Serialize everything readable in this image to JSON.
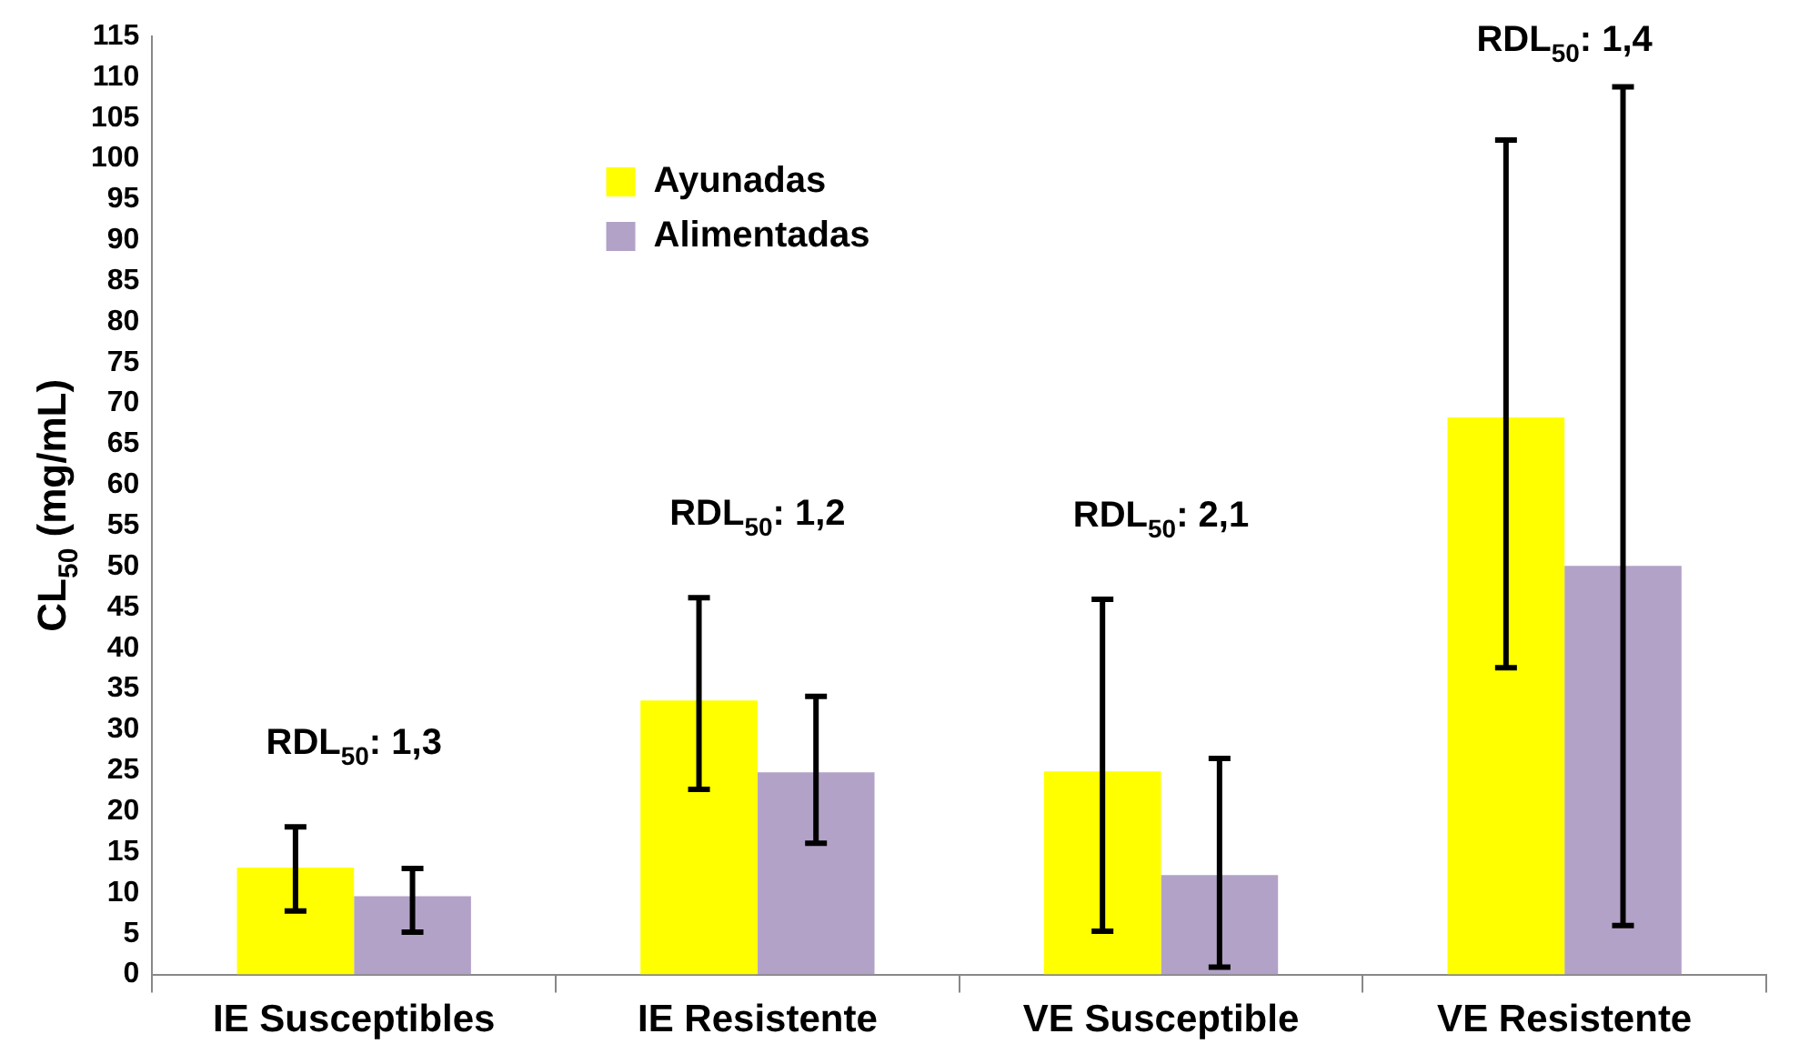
{
  "chart_data": {
    "type": "bar",
    "ylabel": "CL$_{50}$ (mg/mL)",
    "categories": [
      "IE Susceptibles",
      "IE Resistente",
      "VE Susceptible",
      "VE Resistente"
    ],
    "series": [
      {
        "name": "Ayunadas",
        "color": "#ffff00",
        "values": [
          13.1,
          33.6,
          24.9,
          68.3
        ],
        "errors": [
          [
            7.8,
            18.1
          ],
          [
            22.7,
            46.2
          ],
          [
            5.3,
            46.0
          ],
          [
            37.6,
            102.3
          ]
        ]
      },
      {
        "name": "Alimentadas",
        "color": "#b3a2c7",
        "values": [
          9.6,
          24.8,
          12.2,
          50.1
        ],
        "errors": [
          [
            5.2,
            13.0
          ],
          [
            16.1,
            34.1
          ],
          [
            0.9,
            26.5
          ],
          [
            6.0,
            108.8
          ]
        ]
      }
    ],
    "ylim": [
      0,
      115
    ],
    "yticks": [
      0,
      5,
      10,
      15,
      20,
      25,
      30,
      35,
      40,
      45,
      50,
      55,
      60,
      65,
      70,
      75,
      80,
      85,
      90,
      95,
      100,
      105,
      110,
      115
    ],
    "grid": false,
    "legend": "top left",
    "annotations": [
      "RDL$_{50}$: 1,3",
      "RDL$_{50}$: 1,2",
      "RDL$_{50}$: 2,1",
      "RDL$_{50}$: 1,4"
    ]
  }
}
